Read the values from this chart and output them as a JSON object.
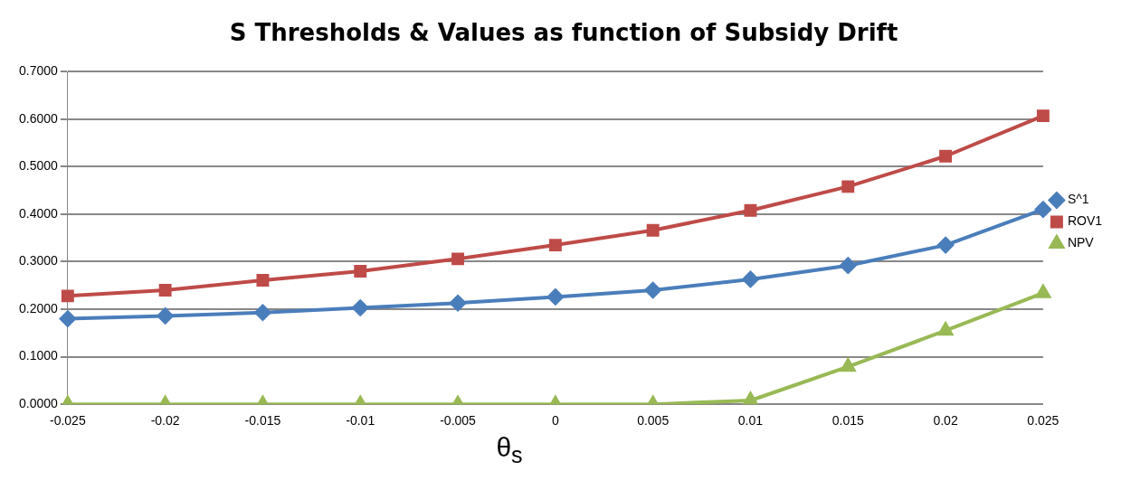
{
  "chart_data": {
    "type": "line",
    "title": "S Thresholds & Values as function of Subsidy Drift",
    "xlabel": "θ$_{s}$",
    "categories": [
      "-0.025",
      "-0.02",
      "-0.015",
      "-0.01",
      "-0.005",
      "0",
      "0.005",
      "0.01",
      "0.015",
      "0.02",
      "0.025"
    ],
    "series": [
      {
        "name": "S^1",
        "color": "#4a7ebb",
        "marker": "diamond",
        "values": [
          0.18,
          0.186,
          0.193,
          0.203,
          0.213,
          0.226,
          0.24,
          0.263,
          0.292,
          0.335,
          0.41
        ]
      },
      {
        "name": "ROV1",
        "color": "#be4b48",
        "marker": "square",
        "values": [
          0.228,
          0.24,
          0.261,
          0.28,
          0.306,
          0.335,
          0.366,
          0.408,
          0.458,
          0.522,
          0.607
        ]
      },
      {
        "name": "NPV",
        "color": "#98b954",
        "marker": "triangle",
        "values": [
          0,
          0,
          0,
          0,
          0,
          0,
          0,
          0.008,
          0.079,
          0.155,
          0.234
        ]
      }
    ],
    "ylim": [
      0,
      0.7
    ],
    "yticks": [
      {
        "value": 0,
        "label": "0.0000"
      },
      {
        "value": 0.1,
        "label": "0.1000"
      },
      {
        "value": 0.2,
        "label": "0.2000"
      },
      {
        "value": 0.3,
        "label": "0.3000"
      },
      {
        "value": 0.4,
        "label": "0.4000"
      },
      {
        "value": 0.5,
        "label": "0.5000"
      },
      {
        "value": 0.6,
        "label": "0.6000"
      },
      {
        "value": 0.7,
        "label": "0.7000"
      }
    ],
    "grid": "y",
    "legend": "right",
    "line_style": "solid"
  }
}
